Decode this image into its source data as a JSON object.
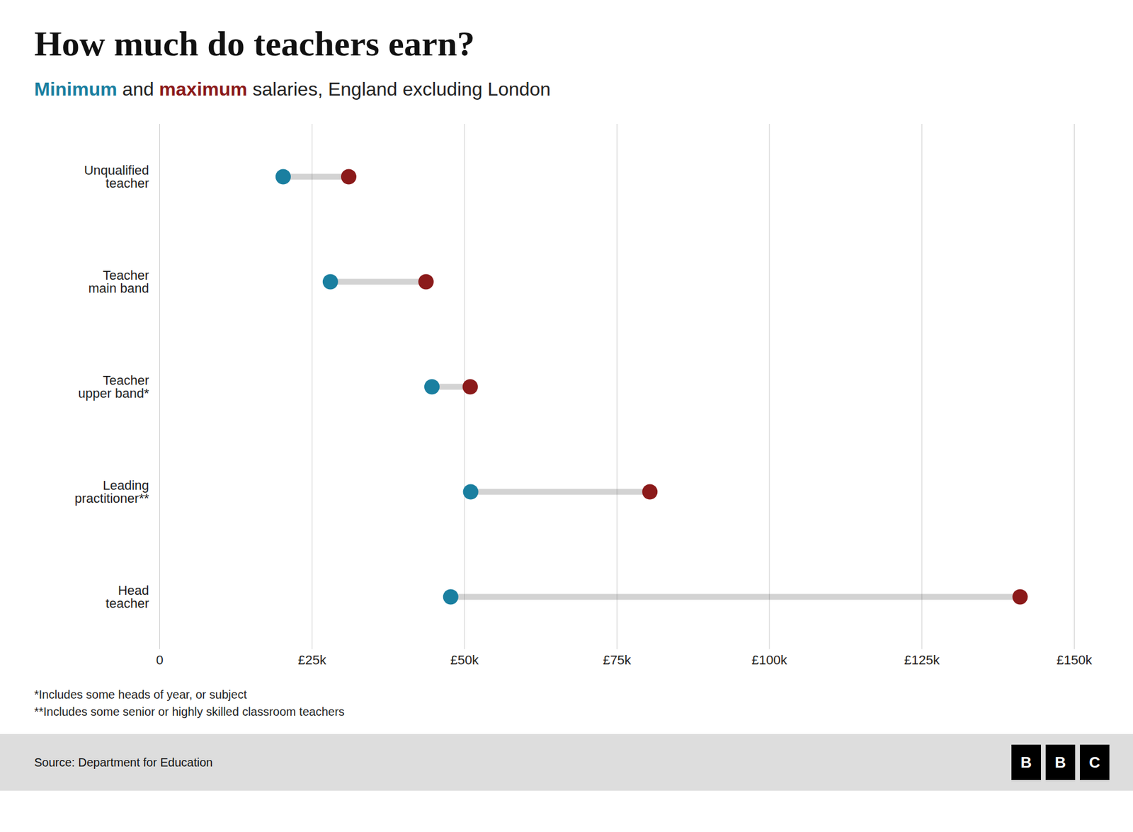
{
  "chart_data": {
    "type": "dumbbell",
    "orientation": "horizontal",
    "title": "How much do teachers earn?",
    "subtitle": "Minimum and maximum salaries, England excluding London",
    "categories": [
      "Head\nteacher",
      "Leading\npractitioner**",
      "Teacher\nupper band*",
      "Teacher\nmain band",
      "Unqualified\nteacher"
    ],
    "series": [
      {
        "name": "Minimum",
        "color": "#1a7fa0",
        "values": [
          47735,
          51009,
          44657,
          28000,
          20262
        ]
      },
      {
        "name": "maximum",
        "color": "#8b1a1a",
        "values": [
          141111,
          80397,
          50935,
          43685,
          31009
        ]
      }
    ],
    "xlim": [
      0,
      150000
    ],
    "xticks": [
      0,
      {
        "value": 25000,
        "label": "£25k"
      },
      {
        "value": 50000,
        "label": "£50k"
      },
      {
        "value": 75000,
        "label": "£75k"
      },
      {
        "value": 100000,
        "label": "£100k"
      },
      {
        "value": 125000,
        "label": "£125k"
      },
      {
        "value": 150000,
        "label": "£150k"
      }
    ],
    "grid": true,
    "footnotes": [
      "*Includes some heads of year, or subject",
      "**Includes some senior or highly skilled classroom teachers"
    ],
    "source": "Source: Department for Education",
    "logo": [
      "B",
      "B",
      "C"
    ]
  }
}
